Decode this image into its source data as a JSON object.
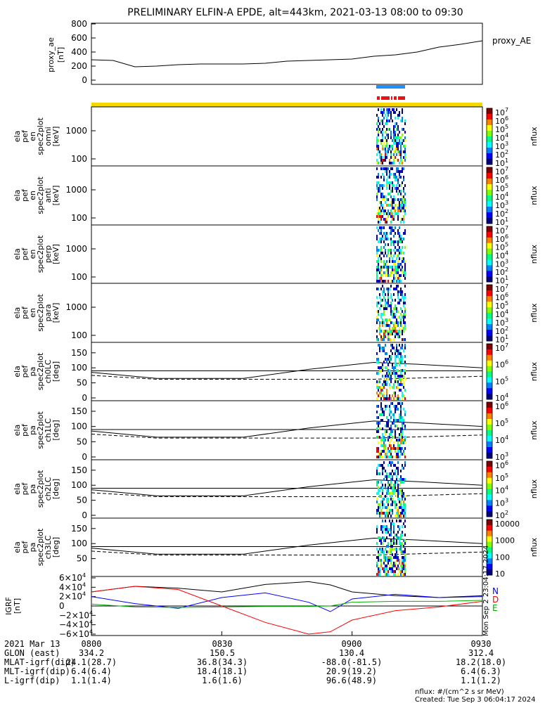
{
  "title": "PRELIMINARY ELFIN-A EPDE, alt=443km, 2021-03-13 08:00 to 09:30",
  "ae_panel": {
    "ylabel": "proxy_ae\n[nT]",
    "legend": "proxy_AE",
    "yticks": [
      "800",
      "600",
      "400",
      "200",
      "0"
    ],
    "ylim": [
      0,
      800
    ]
  },
  "bars": {
    "yellow": "#f5d800",
    "blue": "#1e90ff",
    "red": "#ee1111"
  },
  "spectrogram_panels": [
    {
      "ylabel": [
        "ela",
        "pef",
        "en",
        "spec2plot",
        "omni",
        "[keV]"
      ],
      "yticks": [
        "1000",
        "100"
      ],
      "cb_ticks": [
        "10^7",
        "10^6",
        "10^5",
        "10^4",
        "10^3",
        "10^2",
        "10^1"
      ],
      "cb_label": "nflux"
    },
    {
      "ylabel": [
        "ela",
        "pef",
        "en",
        "spec2plot",
        "anti",
        "[keV]"
      ],
      "yticks": [
        "1000",
        "100"
      ],
      "cb_ticks": [
        "10^7",
        "10^6",
        "10^5",
        "10^4",
        "10^3",
        "10^2",
        "10^1"
      ],
      "cb_label": "nflux"
    },
    {
      "ylabel": [
        "ela",
        "pef",
        "en",
        "spec2plot",
        "perp",
        "[keV]"
      ],
      "yticks": [
        "1000",
        "100"
      ],
      "cb_ticks": [
        "10^7",
        "10^6",
        "10^5",
        "10^4",
        "10^3",
        "10^2",
        "10^1"
      ],
      "cb_label": "nflux"
    },
    {
      "ylabel": [
        "ela",
        "pef",
        "en",
        "spec2plot",
        "para",
        "[keV]"
      ],
      "yticks": [
        "1000",
        "100"
      ],
      "cb_ticks": [
        "10^7",
        "10^6",
        "10^5",
        "10^4",
        "10^3",
        "10^2",
        "10^1"
      ],
      "cb_label": "nflux"
    }
  ],
  "pa_panels": [
    {
      "ylabel": [
        "ela",
        "pef",
        "pa",
        "spec2plot",
        "ch0LC",
        "[deg]"
      ],
      "yticks": [
        "150",
        "100",
        "50",
        "0"
      ],
      "cb_ticks": [
        "10^7",
        "10^6",
        "10^5",
        "10^4"
      ],
      "cb_label": "nflux"
    },
    {
      "ylabel": [
        "ela",
        "pef",
        "pa",
        "spec2plot",
        "ch1LC",
        "[deg]"
      ],
      "yticks": [
        "150",
        "100",
        "50",
        "0"
      ],
      "cb_ticks": [
        "10^6",
        "10^5",
        "10^4",
        "10^3"
      ],
      "cb_label": "nflux"
    },
    {
      "ylabel": [
        "ela",
        "pef",
        "pa",
        "spec2plot",
        "ch2LC",
        "[deg]"
      ],
      "yticks": [
        "150",
        "100",
        "50",
        "0"
      ],
      "cb_ticks": [
        "10^6",
        "10^5",
        "10^4",
        "10^3",
        "10^2"
      ],
      "cb_label": "nflux"
    },
    {
      "ylabel": [
        "ela",
        "pef",
        "pa",
        "spec2plot",
        "ch3LC",
        "[deg]"
      ],
      "yticks": [
        "150",
        "100",
        "50"
      ],
      "cb_ticks": [
        "10000",
        "1000",
        "100",
        "10"
      ],
      "cb_label": "nflux"
    }
  ],
  "igrf_panel": {
    "ylabel": "IGRF\n[nT]",
    "yticks": [
      "6×10^4",
      "4×10^4",
      "2×10^4",
      "0",
      "−2×10^4",
      "−4×10^4",
      "−6×10^4"
    ],
    "ylim": [
      -60000,
      60000
    ],
    "legend": [
      "N",
      "D",
      "E"
    ],
    "legend_colors": [
      "#0000ff",
      "#ff0000",
      "#00b000"
    ],
    "side_stamp": "Mon Sep  2 23:04:17 2024"
  },
  "footer": {
    "rows": [
      {
        "label": "2021 Mar 13",
        "values": [
          "0800",
          "0830",
          "0900",
          "0930"
        ]
      },
      {
        "label": "GLON (east)",
        "values": [
          "334.2",
          "150.5",
          "130.4",
          "312.4"
        ]
      },
      {
        "label": "MLAT-igrf(dip)",
        "values": [
          "24.1(28.7)",
          "36.8(34.3)",
          "-88.0(-81.5)",
          "18.2(18.0)"
        ]
      },
      {
        "label": "MLT-igrf(dip)",
        "values": [
          "6.4(6.4)",
          "18.4(18.1)",
          "20.9(19.2)",
          "6.4(6.3)"
        ]
      },
      {
        "label": "L-igrf(dip)",
        "values": [
          "1.1(1.4)",
          "1.6(1.6)",
          "96.6(48.9)",
          "1.1(1.2)"
        ]
      }
    ],
    "nflux_note": "nflux: #/(cm^2 s sr MeV)",
    "created": "Created: Tue Sep  3 06:04:17 2024"
  },
  "chart_data": [
    {
      "type": "line",
      "title": "PRELIMINARY ELFIN-A EPDE, alt=443km, 2021-03-13 08:00 to 09:30",
      "ylabel": "proxy_ae [nT]",
      "x_minutes_after_0800": [
        0,
        5,
        10,
        15,
        20,
        25,
        30,
        35,
        40,
        45,
        50,
        55,
        60,
        65,
        70,
        75,
        80,
        85,
        90
      ],
      "series": [
        {
          "name": "proxy_AE",
          "values": [
            290,
            280,
            190,
            200,
            220,
            230,
            230,
            230,
            240,
            270,
            280,
            290,
            300,
            340,
            360,
            400,
            470,
            510,
            560
          ]
        }
      ],
      "ylim": [
        0,
        800
      ]
    },
    {
      "type": "heatmap",
      "description": "energy and pitch-angle spectrograms; data present only ~09:02–09:05",
      "ylabel": "[keV] / [deg]",
      "cb_label": "nflux"
    },
    {
      "type": "line",
      "ylabel": "IGRF [nT]",
      "x_minutes_after_0800": [
        0,
        10,
        20,
        30,
        40,
        50,
        55,
        60,
        70,
        80,
        90
      ],
      "series": [
        {
          "name": "N",
          "values": [
            20000,
            5000,
            -5000,
            18000,
            28000,
            8000,
            -12000,
            15000,
            25000,
            18000,
            20000
          ]
        },
        {
          "name": "D",
          "values": [
            30000,
            42000,
            35000,
            0,
            -35000,
            -60000,
            -55000,
            -30000,
            -10000,
            -2000,
            10000
          ]
        },
        {
          "name": "E",
          "values": [
            4000,
            -2000,
            -3000,
            -2000,
            -1000,
            -1000,
            0,
            8000,
            10000,
            10000,
            12000
          ]
        },
        {
          "name": "total",
          "values": [
            30000,
            42000,
            38000,
            30000,
            46000,
            52000,
            45000,
            30000,
            22000,
            18000,
            22000
          ]
        }
      ],
      "ylim": [
        -60000,
        60000
      ]
    }
  ]
}
